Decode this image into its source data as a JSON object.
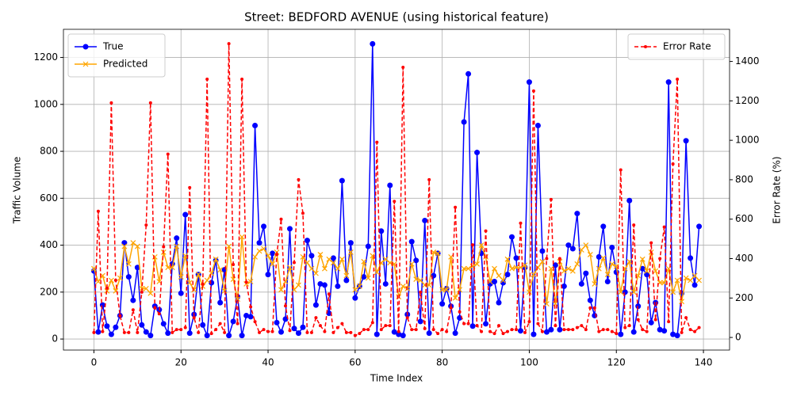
{
  "chart_data": {
    "type": "line",
    "title": "Street: BEDFORD AVENUE (using historical feature)",
    "x_label": "Time Index",
    "y_label": "Traffic Volume",
    "y2_label": "Error Rate (%)",
    "x": [
      0,
      1,
      2,
      3,
      4,
      5,
      6,
      7,
      8,
      9,
      10,
      11,
      12,
      13,
      14,
      15,
      16,
      17,
      18,
      19,
      20,
      21,
      22,
      23,
      24,
      25,
      26,
      27,
      28,
      29,
      30,
      31,
      32,
      33,
      34,
      35,
      36,
      37,
      38,
      39,
      40,
      41,
      42,
      43,
      44,
      45,
      46,
      47,
      48,
      49,
      50,
      51,
      52,
      53,
      54,
      55,
      56,
      57,
      58,
      59,
      60,
      61,
      62,
      63,
      64,
      65,
      66,
      67,
      68,
      69,
      70,
      71,
      72,
      73,
      74,
      75,
      76,
      77,
      78,
      79,
      80,
      81,
      82,
      83,
      84,
      85,
      86,
      87,
      88,
      89,
      90,
      91,
      92,
      93,
      94,
      95,
      96,
      97,
      98,
      99,
      100,
      101,
      102,
      103,
      104,
      105,
      106,
      107,
      108,
      109,
      110,
      111,
      112,
      113,
      114,
      115,
      116,
      117,
      118,
      119,
      120,
      121,
      122,
      123,
      124,
      125,
      126,
      127,
      128,
      129,
      130,
      131,
      132,
      133,
      134,
      135,
      136,
      137,
      138,
      139
    ],
    "series": [
      {
        "name": "True",
        "color": "#0000ff",
        "marker": "o",
        "linestyle": "solid",
        "axis": "y",
        "values": [
          290,
          30,
          145,
          55,
          20,
          50,
          100,
          410,
          265,
          165,
          305,
          60,
          30,
          15,
          140,
          125,
          65,
          25,
          320,
          430,
          195,
          530,
          25,
          105,
          275,
          60,
          15,
          240,
          335,
          155,
          295,
          15,
          75,
          180,
          15,
          100,
          95,
          910,
          410,
          480,
          275,
          365,
          70,
          30,
          85,
          470,
          45,
          25,
          50,
          420,
          355,
          145,
          235,
          230,
          110,
          345,
          225,
          675,
          250,
          410,
          175,
          225,
          265,
          395,
          1258,
          20,
          460,
          235,
          655,
          30,
          20,
          15,
          105,
          415,
          335,
          75,
          505,
          25,
          270,
          365,
          150,
          215,
          140,
          25,
          90,
          925,
          1130,
          55,
          795,
          365,
          65,
          235,
          245,
          155,
          240,
          275,
          435,
          345,
          35,
          305,
          1095,
          20,
          910,
          375,
          30,
          40,
          315,
          40,
          225,
          400,
          385,
          535,
          235,
          280,
          165,
          100,
          350,
          480,
          245,
          390,
          285,
          20,
          200,
          590,
          30,
          140,
          300,
          275,
          70,
          155,
          40,
          35,
          1095,
          20,
          15,
          195,
          845,
          345,
          230,
          480
        ]
      },
      {
        "name": "Predicted",
        "color": "#ffa500",
        "marker": "x",
        "linestyle": "solid",
        "axis": "y",
        "values": [
          300,
          245,
          270,
          205,
          250,
          205,
          260,
          395,
          320,
          410,
          395,
          215,
          215,
          195,
          350,
          245,
          370,
          305,
          305,
          395,
          265,
          355,
          240,
          210,
          275,
          225,
          250,
          280,
          340,
          295,
          205,
          395,
          255,
          170,
          435,
          235,
          245,
          350,
          375,
          385,
          355,
          320,
          370,
          210,
          245,
          305,
          210,
          230,
          350,
          325,
          300,
          280,
          360,
          300,
          340,
          325,
          300,
          340,
          270,
          370,
          210,
          225,
          330,
          260,
          355,
          285,
          325,
          340,
          325,
          320,
          180,
          225,
          215,
          320,
          255,
          250,
          230,
          230,
          370,
          365,
          210,
          210,
          350,
          175,
          210,
          300,
          300,
          310,
          320,
          400,
          350,
          245,
          300,
          270,
          250,
          340,
          300,
          305,
          305,
          315,
          200,
          275,
          305,
          330,
          150,
          300,
          150,
          330,
          290,
          300,
          290,
          320,
          380,
          400,
          360,
          235,
          300,
          345,
          275,
          320,
          310,
          200,
          300,
          330,
          200,
          270,
          340,
          290,
          370,
          290,
          240,
          240,
          300,
          200,
          250,
          160,
          260,
          250,
          270,
          250
        ]
      },
      {
        "name": "Error Rate",
        "color": "#ff0000",
        "marker": ".",
        "linestyle": "dashed",
        "axis": "y2",
        "values": [
          25,
          640,
          30,
          250,
          1190,
          290,
          110,
          25,
          25,
          140,
          25,
          230,
          570,
          1190,
          150,
          120,
          460,
          930,
          25,
          40,
          40,
          50,
          760,
          100,
          25,
          270,
          1310,
          20,
          40,
          70,
          25,
          1490,
          370,
          70,
          1310,
          280,
          155,
          80,
          25,
          40,
          30,
          30,
          420,
          600,
          160,
          35,
          380,
          800,
          630,
          25,
          25,
          100,
          60,
          30,
          220,
          25,
          50,
          70,
          25,
          25,
          10,
          20,
          40,
          40,
          75,
          990,
          40,
          60,
          60,
          690,
          30,
          1370,
          100,
          40,
          40,
          230,
          45,
          800,
          40,
          20,
          40,
          30,
          150,
          660,
          130,
          70,
          70,
          470,
          60,
          30,
          540,
          30,
          20,
          60,
          20,
          30,
          40,
          40,
          580,
          25,
          80,
          1250,
          70,
          30,
          400,
          700,
          60,
          400,
          40,
          40,
          40,
          50,
          60,
          40,
          150,
          150,
          30,
          40,
          40,
          30,
          20,
          850,
          50,
          60,
          570,
          90,
          40,
          30,
          480,
          90,
          400,
          560,
          80,
          880,
          1310,
          25,
          100,
          40,
          30,
          50
        ]
      }
    ],
    "xlim": [
      -7,
      146
    ],
    "xticks": [
      0,
      20,
      40,
      60,
      80,
      100,
      120,
      140
    ],
    "ylim": [
      -47,
      1320
    ],
    "yticks": [
      0,
      200,
      400,
      600,
      800,
      1000,
      1200
    ],
    "y2lim": [
      -64,
      1563
    ],
    "y2ticks": [
      0,
      200,
      400,
      600,
      800,
      1000,
      1200,
      1400
    ],
    "grid": true,
    "legend": "upper left",
    "legend2": "upper right"
  }
}
